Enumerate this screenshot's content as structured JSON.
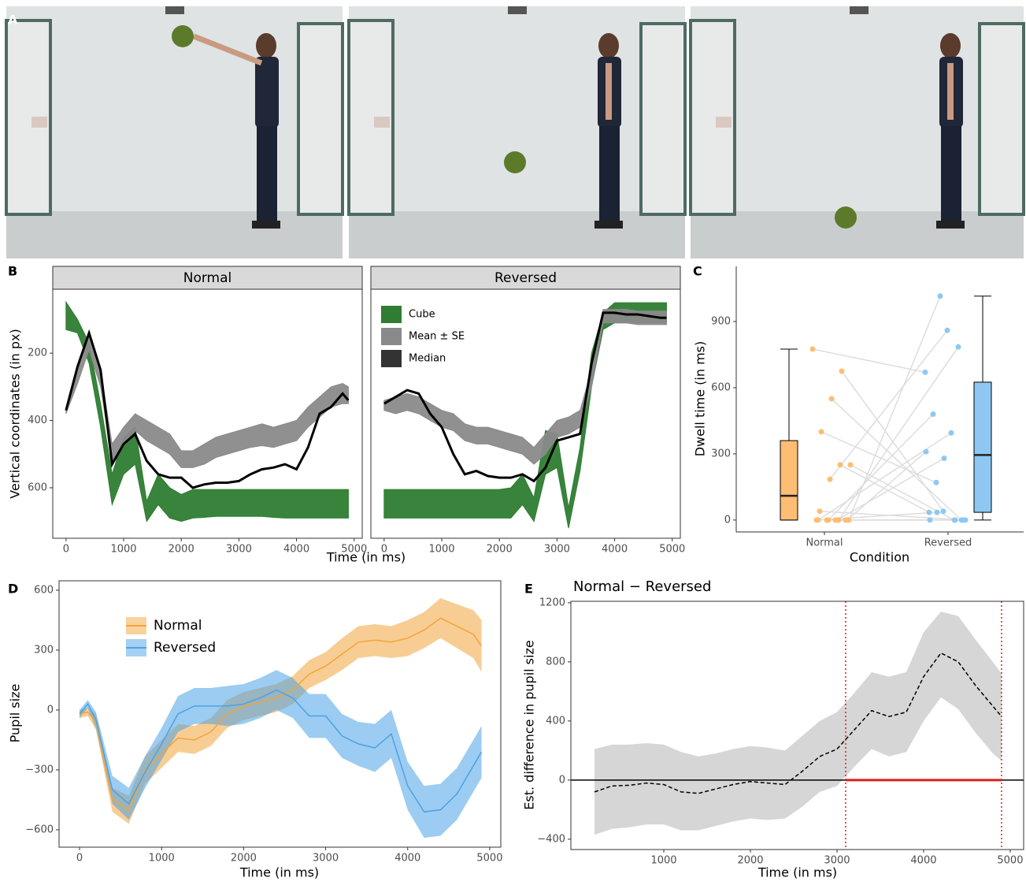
{
  "panel_a": {
    "label": "A"
  },
  "chart_data": [
    {
      "type": "facet_band",
      "panel_label": "B",
      "x_label": "Time (in ms)",
      "y_label": "Vertical coordinates (in px)",
      "xlim": [
        -230,
        5140
      ],
      "ylim": [
        10,
        750
      ],
      "y_reverse": true,
      "xticks": [
        0,
        1000,
        2000,
        3000,
        4000,
        5000
      ],
      "yticks": [
        200,
        400,
        600
      ],
      "x": [
        0,
        200,
        400,
        600,
        800,
        1000,
        1200,
        1400,
        1600,
        1800,
        2000,
        2200,
        2400,
        2600,
        2800,
        3000,
        3200,
        3400,
        3600,
        3800,
        4000,
        4200,
        4400,
        4600,
        4800,
        4900
      ],
      "series": [
        {
          "name": "Cube",
          "color": "#2e7d32",
          "style": "band"
        },
        {
          "name": "Mean ± SE",
          "color": "#8a8a8a",
          "style": "band"
        },
        {
          "name": "Median",
          "color": "#000000",
          "style": "line"
        }
      ],
      "legend": "top-left",
      "legend_facet": 1,
      "facets": [
        {
          "title": "Normal",
          "data": [
            {
              "lower": [
                48,
                100,
                170,
                350,
                560,
                450,
                420,
                640,
                560,
                600,
                620,
                605,
                605,
                605,
                605,
                605,
                605,
                605,
                605,
                605,
                605,
                605,
                605,
                605,
                605,
                605
              ],
              "upper": [
                130,
                140,
                230,
                420,
                650,
                560,
                530,
                700,
                650,
                690,
                700,
                690,
                688,
                685,
                685,
                685,
                685,
                685,
                688,
                690,
                690,
                690,
                690,
                690,
                690,
                690
              ]
            },
            {
              "lower": [
                360,
                250,
                150,
                250,
                470,
                420,
                380,
                400,
                420,
                440,
                490,
                490,
                470,
                450,
                440,
                430,
                420,
                410,
                420,
                410,
                400,
                360,
                330,
                300,
                290,
                300
              ],
              "upper": [
                380,
                290,
                190,
                300,
                520,
                470,
                430,
                460,
                480,
                500,
                540,
                540,
                530,
                510,
                500,
                490,
                480,
                475,
                480,
                470,
                460,
                420,
                390,
                360,
                350,
                350
              ]
            },
            {
              "values": [
                370,
                240,
                140,
                250,
                530,
                470,
                440,
                520,
                560,
                570,
                570,
                600,
                590,
                585,
                585,
                580,
                560,
                545,
                540,
                530,
                545,
                480,
                380,
                360,
                320,
                340
              ]
            }
          ]
        },
        {
          "title": "Reversed",
          "data": [
            {
              "lower": [
                605,
                605,
                605,
                605,
                605,
                605,
                605,
                605,
                605,
                605,
                605,
                600,
                560,
                630,
                430,
                440,
                660,
                480,
                200,
                80,
                50,
                50,
                50,
                50,
                50,
                50
              ],
              "upper": [
                690,
                690,
                690,
                690,
                690,
                690,
                690,
                690,
                690,
                690,
                690,
                690,
                650,
                700,
                560,
                540,
                720,
                550,
                300,
                130,
                110,
                110,
                110,
                110,
                110,
                110
              ]
            },
            {
              "lower": [
                340,
                330,
                320,
                330,
                350,
                370,
                380,
                410,
                420,
                420,
                430,
                440,
                450,
                480,
                440,
                400,
                390,
                370,
                250,
                70,
                70,
                70,
                75,
                75,
                75,
                75
              ],
              "upper": [
                370,
                380,
                370,
                380,
                400,
                420,
                430,
                460,
                470,
                470,
                480,
                490,
                500,
                530,
                500,
                450,
                440,
                420,
                300,
                110,
                110,
                110,
                115,
                115,
                115,
                115
              ]
            },
            {
              "values": [
                350,
                330,
                310,
                320,
                380,
                420,
                500,
                560,
                550,
                565,
                570,
                570,
                560,
                580,
                540,
                460,
                450,
                440,
                230,
                80,
                80,
                85,
                85,
                90,
                95,
                95
              ]
            }
          ]
        }
      ]
    },
    {
      "type": "box_paired",
      "panel_label": "C",
      "x_label": "Condition",
      "y_label": "Dwell time (in ms)",
      "categories": [
        "Normal",
        "Reversed"
      ],
      "ylim": [
        -54,
        1150
      ],
      "yticks": [
        0,
        300,
        600,
        900
      ],
      "pair_color": "#dddddd",
      "series": [
        {
          "color": "#fdbd72",
          "box": {
            "min": 0,
            "q1": 0,
            "median": 110,
            "q3": 360,
            "max": 775
          },
          "values": [
            775,
            675,
            550,
            400,
            250,
            250,
            185,
            40,
            0,
            0,
            0,
            0,
            0,
            0,
            0,
            0,
            0,
            0
          ]
        },
        {
          "color": "#8ec8f2",
          "box": {
            "min": 0,
            "q1": 35,
            "median": 295,
            "q3": 625,
            "max": 1015
          },
          "values": [
            670,
            40,
            0,
            170,
            0,
            35,
            860,
            0,
            1015,
            785,
            480,
            395,
            310,
            280,
            0,
            35,
            0,
            0
          ]
        }
      ]
    },
    {
      "type": "ribbon",
      "panel_label": "D",
      "x_label": "Time (in ms)",
      "y_label": "Pupil size",
      "xlim": [
        -250,
        5135
      ],
      "ylim": [
        -687,
        647
      ],
      "xticks": [
        0,
        1000,
        2000,
        3000,
        4000,
        5000
      ],
      "yticks": [
        {
          "value": -600,
          "label": "−600"
        },
        {
          "value": -300,
          "label": "−300"
        },
        0,
        300,
        600
      ],
      "legend": "top-left",
      "x": [
        0,
        100,
        200,
        400,
        600,
        800,
        1000,
        1200,
        1400,
        1600,
        1800,
        2000,
        2200,
        2400,
        2600,
        2800,
        3000,
        3200,
        3400,
        3600,
        3800,
        4000,
        4200,
        4400,
        4600,
        4800,
        4900
      ],
      "series": [
        {
          "name": "Normal",
          "color": "#f3a43b",
          "values": [
            -20,
            -10,
            -60,
            -450,
            -500,
            -300,
            -220,
            -140,
            -150,
            -110,
            -20,
            20,
            40,
            60,
            100,
            180,
            220,
            280,
            340,
            350,
            340,
            360,
            400,
            460,
            420,
            380,
            320
          ],
          "lower": [
            -40,
            -30,
            -100,
            -510,
            -570,
            -370,
            -290,
            -210,
            -220,
            -180,
            -90,
            -50,
            -30,
            -10,
            30,
            110,
            150,
            200,
            260,
            270,
            260,
            270,
            310,
            360,
            310,
            260,
            190
          ],
          "upper": [
            0,
            10,
            -20,
            -390,
            -430,
            -230,
            -150,
            -70,
            -80,
            -40,
            50,
            90,
            110,
            130,
            170,
            250,
            290,
            360,
            420,
            430,
            420,
            450,
            490,
            560,
            530,
            500,
            450
          ]
        },
        {
          "name": "Reversed",
          "color": "#4ba2e6",
          "values": [
            -20,
            30,
            -50,
            -400,
            -470,
            -310,
            -170,
            -20,
            20,
            20,
            20,
            30,
            60,
            100,
            60,
            -30,
            -30,
            -130,
            -170,
            -190,
            -120,
            -380,
            -510,
            -500,
            -420,
            -280,
            -210
          ],
          "lower": [
            -40,
            10,
            -90,
            -470,
            -550,
            -390,
            -250,
            -110,
            -70,
            -70,
            -80,
            -70,
            -40,
            0,
            -40,
            -140,
            -140,
            -240,
            -280,
            -310,
            -240,
            -500,
            -640,
            -630,
            -550,
            -410,
            -340
          ],
          "upper": [
            0,
            50,
            -10,
            -330,
            -390,
            -230,
            -90,
            70,
            110,
            110,
            120,
            130,
            160,
            200,
            160,
            80,
            80,
            -20,
            -60,
            -70,
            0,
            -260,
            -380,
            -370,
            -290,
            -150,
            -80
          ]
        }
      ]
    },
    {
      "type": "ribbon",
      "panel_label": "E",
      "title": "Normal − Reversed",
      "x_label": "Time (in ms)",
      "y_label": "Est. difference in pupil size",
      "xlim": [
        -73,
        5155
      ],
      "ylim": [
        -470,
        1210
      ],
      "xticks": [
        1000,
        2000,
        3000,
        4000,
        5000
      ],
      "yticks": [
        {
          "value": -400,
          "label": "−400"
        },
        0,
        400,
        800,
        1200
      ],
      "reference_line": 0,
      "highlight": {
        "xlim": [
          3100,
          4900
        ],
        "color": "#e31a1c"
      },
      "x": [
        200,
        400,
        600,
        800,
        1000,
        1200,
        1400,
        1600,
        1800,
        2000,
        2200,
        2400,
        2600,
        2800,
        3000,
        3200,
        3400,
        3600,
        3800,
        4000,
        4200,
        4400,
        4600,
        4800,
        4900
      ],
      "series": [
        {
          "color": "#000000",
          "band_color": "#b5b5b5",
          "dash": true,
          "values": [
            -80,
            -40,
            -35,
            -20,
            -30,
            -80,
            -90,
            -60,
            -30,
            -10,
            -20,
            -30,
            60,
            160,
            210,
            340,
            470,
            430,
            460,
            700,
            860,
            800,
            640,
            500,
            430
          ],
          "lower": [
            -370,
            -330,
            -320,
            -300,
            -300,
            -340,
            -340,
            -310,
            -280,
            -260,
            -270,
            -260,
            -180,
            -80,
            -40,
            90,
            210,
            160,
            190,
            400,
            560,
            480,
            320,
            180,
            130
          ],
          "upper": [
            210,
            240,
            240,
            250,
            240,
            190,
            160,
            180,
            210,
            230,
            220,
            200,
            300,
            400,
            460,
            590,
            730,
            700,
            730,
            1000,
            1140,
            1110,
            950,
            800,
            720
          ]
        }
      ]
    }
  ]
}
